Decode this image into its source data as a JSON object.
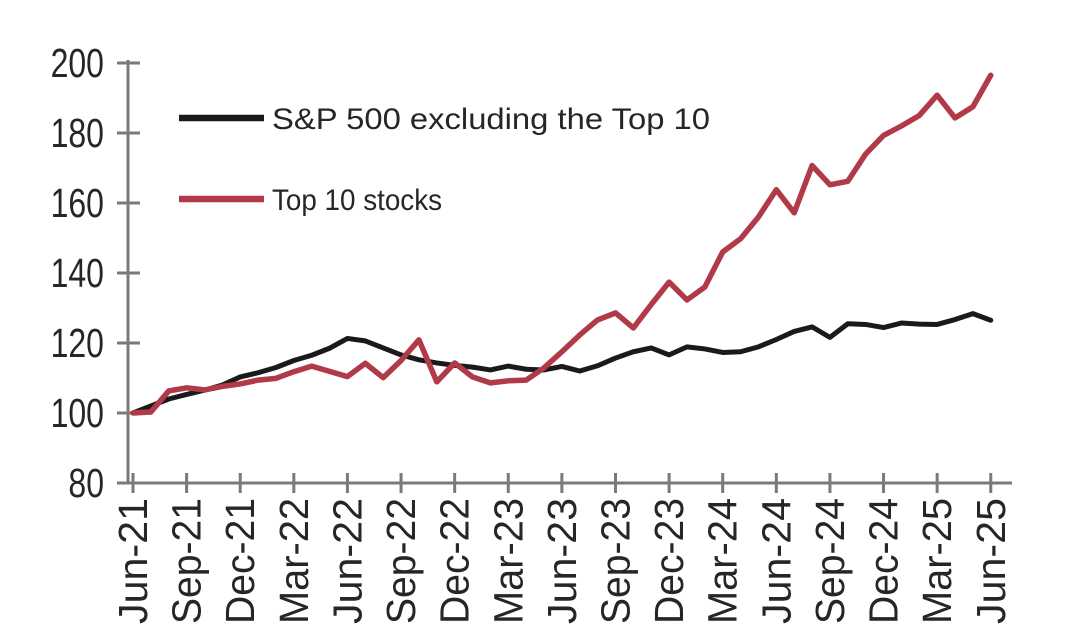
{
  "chart_data": {
    "type": "line",
    "title": "",
    "xlabel": "",
    "ylabel": "",
    "index_base": 100,
    "ylim": [
      80,
      200
    ],
    "y_ticks": [
      80,
      100,
      120,
      140,
      160,
      180,
      200
    ],
    "x_tick_labels": [
      "Jun-21",
      "Sep-21",
      "Dec-21",
      "Mar-22",
      "Jun-22",
      "Sep-22",
      "Dec-22",
      "Mar-23",
      "Jun-23",
      "Sep-23",
      "Dec-23",
      "Mar-24",
      "Jun-24",
      "Sep-24",
      "Dec-24",
      "Mar-25",
      "Jun-25"
    ],
    "x": [
      "Jun-21",
      "Jul-21",
      "Aug-21",
      "Sep-21",
      "Oct-21",
      "Nov-21",
      "Dec-21",
      "Jan-22",
      "Feb-22",
      "Mar-22",
      "Apr-22",
      "May-22",
      "Jun-22",
      "Jul-22",
      "Aug-22",
      "Sep-22",
      "Oct-22",
      "Nov-22",
      "Dec-22",
      "Jan-23",
      "Feb-23",
      "Mar-23",
      "Apr-23",
      "May-23",
      "Jun-23",
      "Jul-23",
      "Aug-23",
      "Sep-23",
      "Oct-23",
      "Nov-23",
      "Dec-23",
      "Jan-24",
      "Feb-24",
      "Mar-24",
      "Apr-24",
      "May-24",
      "Jun-24",
      "Jul-24",
      "Aug-24",
      "Sep-24",
      "Oct-24",
      "Nov-24",
      "Dec-24",
      "Jan-25",
      "Feb-25",
      "Mar-25",
      "Apr-25",
      "May-25",
      "Jun-25"
    ],
    "series": [
      {
        "name": "S&P 500 excluding the Top 10",
        "color": "#1a1a1a",
        "values": [
          100,
          102,
          104,
          105.3,
          106.5,
          108,
          110.3,
          111.5,
          113,
          115,
          116.5,
          118.5,
          121.3,
          120.6,
          118.6,
          116.6,
          115.2,
          114.3,
          113.6,
          113.1,
          112.3,
          113.4,
          112.5,
          112.3,
          113.3,
          112,
          113.5,
          115.7,
          117.5,
          118.6,
          116.6,
          118.9,
          118.3,
          117.3,
          117.5,
          118.9,
          121,
          123.3,
          124.6,
          121.6,
          125.5,
          125.3,
          124.4,
          125.7,
          125.4,
          125.3,
          126.7,
          128.4,
          126.5
        ]
      },
      {
        "name": "Top 10 stocks",
        "color": "#b03a48",
        "values": [
          100,
          100.3,
          106.3,
          107.2,
          106.6,
          107.6,
          108.3,
          109.4,
          109.9,
          111.8,
          113.4,
          111.9,
          110.4,
          114.2,
          110.1,
          115,
          120.9,
          108.9,
          114.3,
          110.3,
          108.6,
          109.2,
          109.4,
          112.9,
          117.5,
          122.3,
          126.6,
          128.6,
          124.3,
          131,
          137.4,
          132.3,
          136,
          146,
          149.8,
          156,
          163.8,
          157.2,
          170.7,
          165.2,
          166.2,
          174,
          179.3,
          182,
          185,
          190.8,
          184.3,
          187.5,
          196.5
        ]
      }
    ],
    "legend_position": "top-left-inside",
    "grid": false,
    "axis_color": "#7a7a7a",
    "label_color": "#262626"
  }
}
